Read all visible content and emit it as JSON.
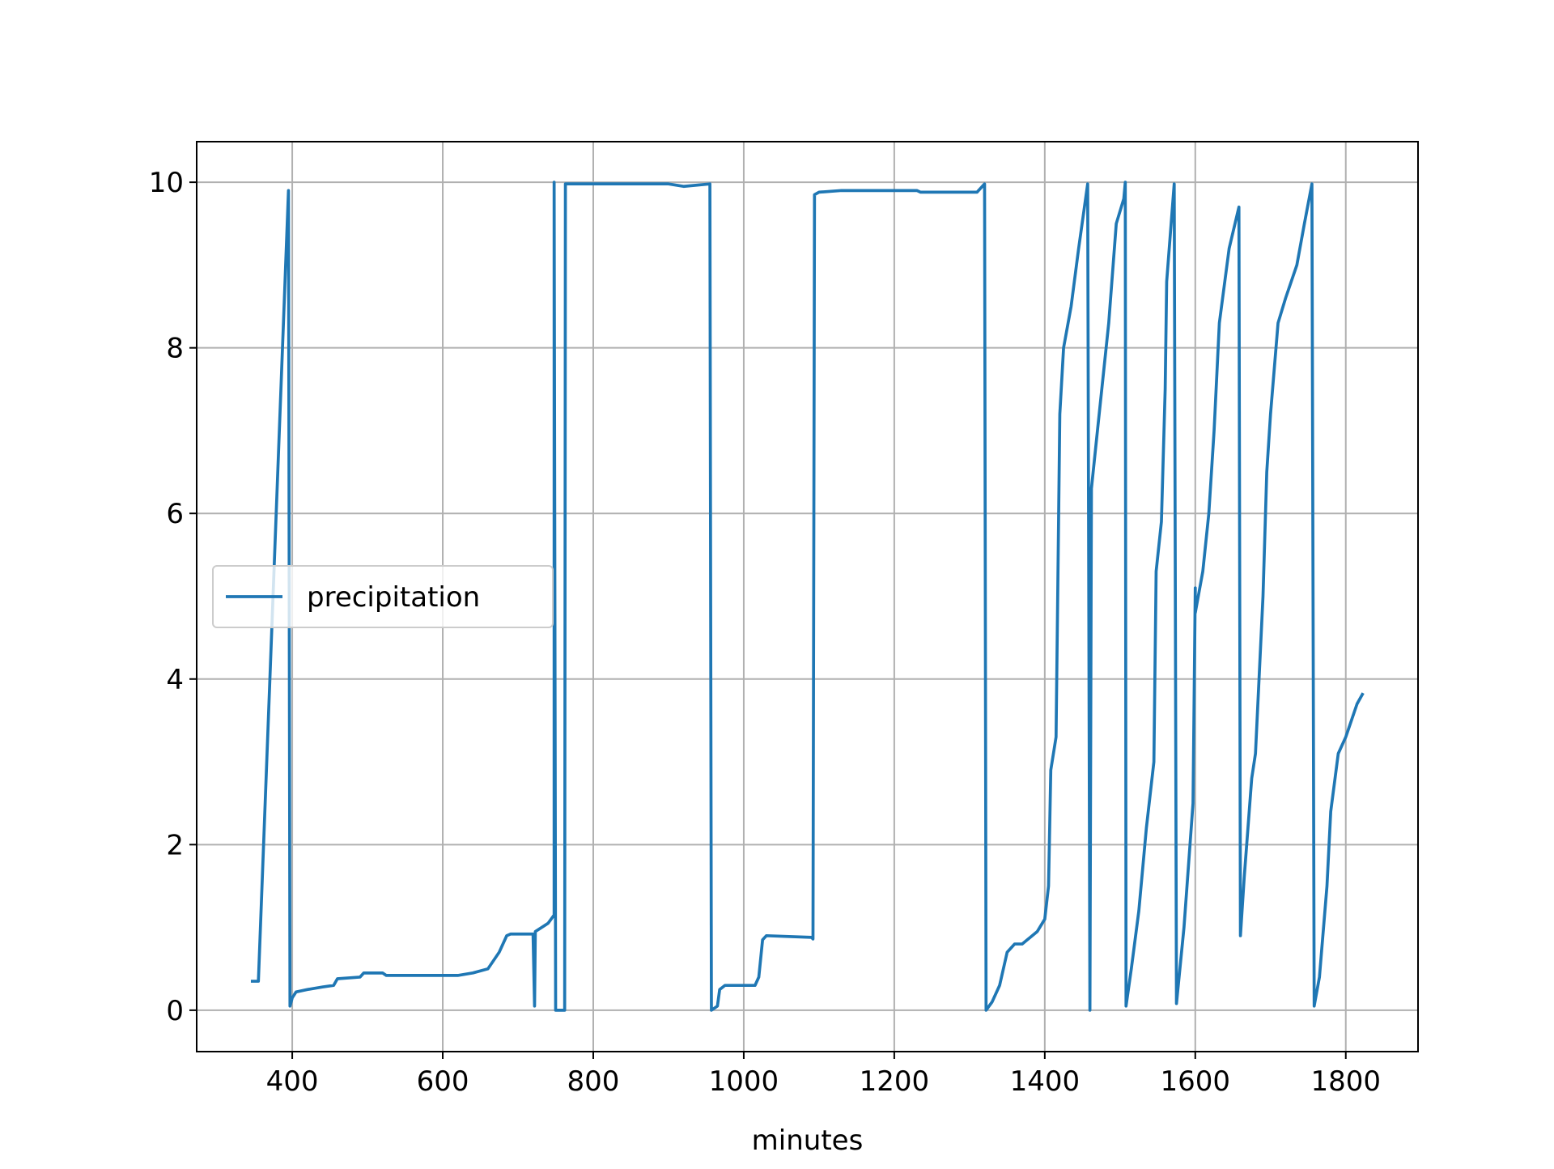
{
  "chart_data": {
    "type": "line",
    "xlabel": "minutes",
    "x": [
      345,
      355,
      395,
      397,
      400,
      405,
      420,
      440,
      455,
      460,
      490,
      495,
      520,
      525,
      600,
      620,
      640,
      660,
      675,
      685,
      690,
      720,
      722,
      723,
      740,
      748,
      748,
      750,
      762,
      763,
      900,
      920,
      955,
      957,
      965,
      968,
      975,
      1015,
      1020,
      1025,
      1030,
      1090,
      1092,
      1094,
      1100,
      1130,
      1230,
      1235,
      1310,
      1320,
      1322,
      1330,
      1340,
      1350,
      1360,
      1370,
      1390,
      1400,
      1405,
      1408,
      1415,
      1420,
      1425,
      1435,
      1445,
      1457,
      1460,
      1462,
      1470,
      1485,
      1495,
      1505,
      1507,
      1508,
      1515,
      1525,
      1535,
      1545,
      1548,
      1555,
      1560,
      1562,
      1572,
      1575,
      1585,
      1597,
      1600,
      1600,
      1610,
      1618,
      1625,
      1632,
      1645,
      1658,
      1660,
      1665,
      1675,
      1680,
      1690,
      1695,
      1700,
      1710,
      1720,
      1735,
      1745,
      1755,
      1758,
      1765,
      1775,
      1780,
      1790,
      1800,
      1815,
      1823
    ],
    "series": [
      {
        "name": "precipitation",
        "color": "#1f77b4",
        "values": [
          0.35,
          0.35,
          9.9,
          0.05,
          0.15,
          0.22,
          0.25,
          0.28,
          0.3,
          0.38,
          0.4,
          0.45,
          0.45,
          0.42,
          0.42,
          0.42,
          0.45,
          0.5,
          0.7,
          0.9,
          0.92,
          0.92,
          0.05,
          0.95,
          1.05,
          1.15,
          10,
          0,
          0,
          9.98,
          9.98,
          9.95,
          9.98,
          0,
          0.05,
          0.25,
          0.3,
          0.3,
          0.4,
          0.85,
          0.9,
          0.88,
          0.86,
          9.85,
          9.88,
          9.9,
          9.9,
          9.88,
          9.88,
          9.98,
          0,
          0.1,
          0.3,
          0.7,
          0.8,
          0.8,
          0.95,
          1.1,
          1.5,
          2.9,
          3.3,
          7.2,
          8,
          8.5,
          9.2,
          9.98,
          0,
          6.3,
          7,
          8.3,
          9.5,
          9.8,
          10,
          0.05,
          0.5,
          1.2,
          2.2,
          3,
          5.3,
          5.9,
          7.5,
          8.8,
          9.98,
          0.08,
          1,
          2.5,
          5.1,
          4.8,
          5.3,
          6,
          7,
          8.3,
          9.2,
          9.7,
          0.9,
          1.6,
          2.8,
          3.1,
          5,
          6.5,
          7.2,
          8.3,
          8.6,
          9,
          9.5,
          9.98,
          0.05,
          0.4,
          1.5,
          2.4,
          3.1,
          3.3,
          3.7,
          3.83
        ]
      }
    ],
    "xlim": [
      273,
      1896
    ],
    "xticks": [
      400,
      600,
      800,
      1000,
      1200,
      1400,
      1600,
      1800
    ],
    "ylim": [
      -0.5,
      10.49
    ],
    "yticks": [
      0,
      2,
      4,
      6,
      8,
      10
    ],
    "grid": true,
    "legend": "center left"
  }
}
